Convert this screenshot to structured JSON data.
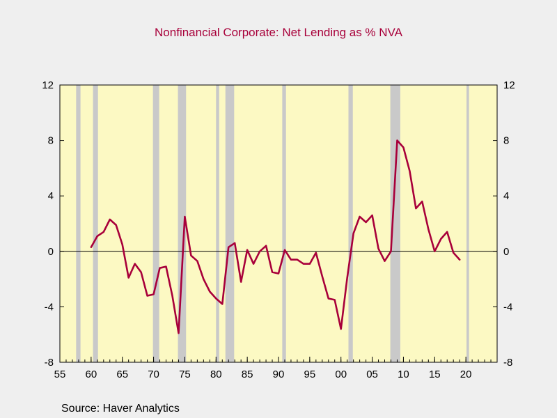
{
  "chart_data": {
    "type": "line",
    "title": "Nonfinancial Corporate: Net Lending as % NVA",
    "source": "Source:  Haver Analytics",
    "xlabel": "",
    "ylabel": "",
    "xlim": [
      1955,
      2025
    ],
    "ylim": [
      -8,
      12
    ],
    "y_ticks": [
      12,
      8,
      4,
      0,
      -4,
      -8
    ],
    "y_tick_labels": [
      "12",
      "8",
      "4",
      "0",
      "-4",
      "-8"
    ],
    "x_ticks": [
      1955,
      1960,
      1965,
      1970,
      1975,
      1980,
      1985,
      1990,
      1995,
      2000,
      2005,
      2010,
      2015,
      2020
    ],
    "x_tick_labels": [
      "55",
      "60",
      "65",
      "70",
      "75",
      "80",
      "85",
      "90",
      "95",
      "00",
      "05",
      "10",
      "15",
      "20"
    ],
    "grid": false,
    "zero_line": true,
    "colors": {
      "background": "#efefef",
      "plot_background": "#fcf9c3",
      "recession": "#c9c9c9",
      "line": "#a8003a",
      "title": "#a8003a"
    },
    "recessions": [
      [
        1957.6,
        1958.3
      ],
      [
        1960.3,
        1961.1
      ],
      [
        1969.9,
        1970.9
      ],
      [
        1973.9,
        1975.2
      ],
      [
        1980.0,
        1980.5
      ],
      [
        1981.5,
        1982.9
      ],
      [
        1990.6,
        1991.2
      ],
      [
        2001.2,
        2001.9
      ],
      [
        2007.9,
        2009.5
      ],
      [
        2020.1,
        2020.5
      ]
    ],
    "series": [
      {
        "x": [
          1960,
          1961,
          1962,
          1963,
          1964,
          1965,
          1966,
          1967,
          1968,
          1969,
          1970,
          1971,
          1972,
          1973,
          1974,
          1975,
          1976,
          1977,
          1978,
          1979,
          1980,
          1981,
          1982,
          1983,
          1984,
          1985,
          1986,
          1987,
          1988,
          1989,
          1990,
          1991,
          1992,
          1993,
          1994,
          1995,
          1996,
          1997,
          1998,
          1999,
          2000,
          2001,
          2002,
          2003,
          2004,
          2005,
          2006,
          2007,
          2008,
          2009,
          2010,
          2011,
          2012,
          2013,
          2014,
          2015,
          2016,
          2017,
          2018,
          2019
        ],
        "values": [
          0.3,
          1.1,
          1.4,
          2.3,
          1.9,
          0.5,
          -1.9,
          -0.9,
          -1.5,
          -3.2,
          -3.1,
          -1.2,
          -1.1,
          -3.2,
          -5.9,
          2.5,
          -0.3,
          -0.7,
          -2.0,
          -2.9,
          -3.4,
          -3.8,
          0.3,
          0.6,
          -2.2,
          0.1,
          -0.9,
          0.0,
          0.4,
          -1.5,
          -1.6,
          0.1,
          -0.6,
          -0.6,
          -0.9,
          -0.9,
          -0.1,
          -1.8,
          -3.4,
          -3.5,
          -5.6,
          -1.9,
          1.3,
          2.5,
          2.1,
          2.6,
          0.2,
          -0.7,
          0.0,
          8.0,
          7.5,
          5.8,
          3.1,
          3.6,
          1.6,
          0.0,
          0.9,
          1.4,
          -0.1,
          -0.6
        ]
      }
    ]
  }
}
